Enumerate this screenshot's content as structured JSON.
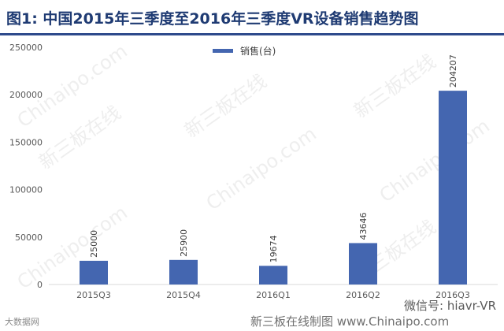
{
  "header": {
    "title": "图1: 中国2015年三季度至2016年三季度VR设备销售趋势图"
  },
  "watermarks": {
    "chinaipo": "Chinaipo.com",
    "xinsanban": "新三板在线"
  },
  "footer": {
    "left_text": "大数据网",
    "right_text": "微信号: hiavr-VR",
    "center_text": "新三板在线制图 www.Chinaipo.com"
  },
  "colors": {
    "bar": "#4466b0",
    "title": "#1f3b73"
  },
  "chart_data": {
    "type": "bar",
    "categories": [
      "2015Q3",
      "2015Q4",
      "2016Q1",
      "2016Q2",
      "2016Q3"
    ],
    "series": [
      {
        "name": "销售(台)",
        "values": [
          25000,
          25900,
          19674,
          43646,
          204207
        ]
      }
    ],
    "data_labels": [
      "25000",
      "25900",
      "19674",
      "43646",
      "204207"
    ],
    "yticks": [
      0,
      50000,
      100000,
      150000,
      200000,
      250000
    ],
    "ylim": [
      0,
      250000
    ],
    "legend_position": "top-center",
    "grid": false
  }
}
